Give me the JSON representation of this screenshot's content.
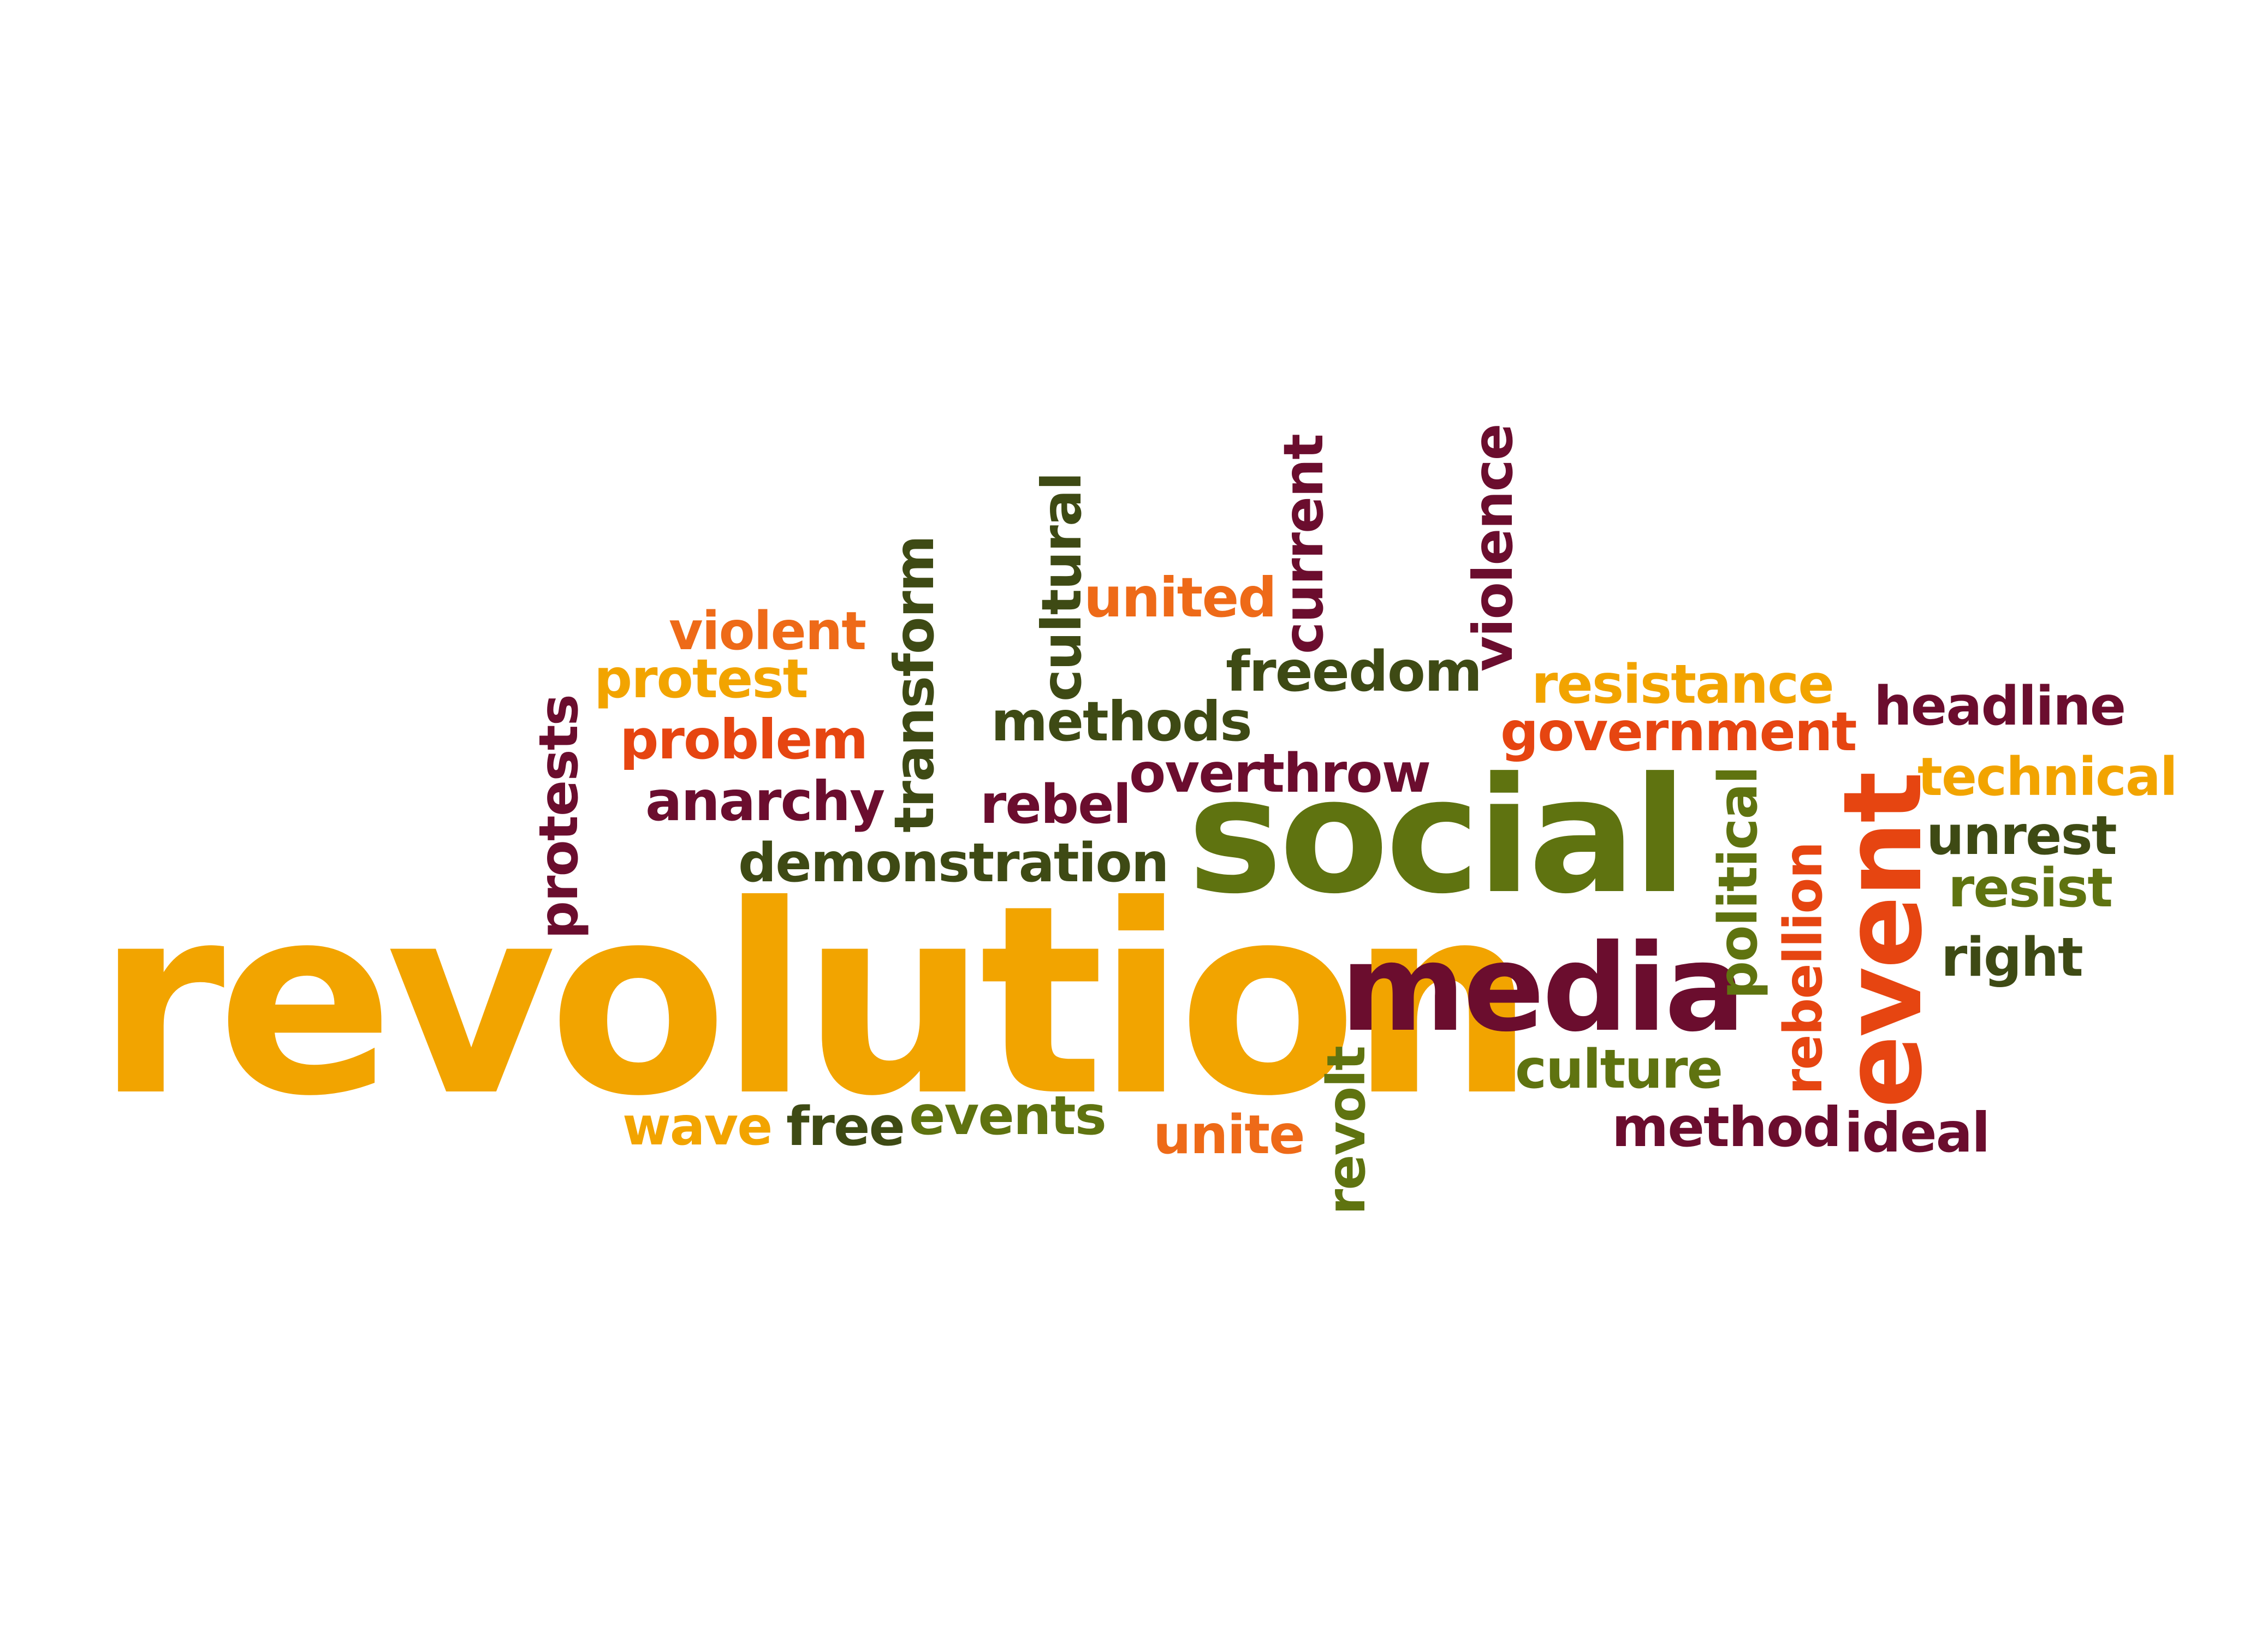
{
  "colors": {
    "gold": "#f2a400",
    "orange": "#ee6a18",
    "red": "#e64511",
    "olive": "#5f7310",
    "dark_green": "#3e4a14",
    "maroon": "#6b0d2e",
    "background": "#ffffff"
  },
  "words": {
    "revolution": "revolution",
    "social": "social",
    "media": "media",
    "event": "event",
    "violent": "violent",
    "protest": "protest",
    "problem": "problem",
    "anarchy": "anarchy",
    "protests": "protests",
    "transform": "transform",
    "cultural": "cultural",
    "united": "united",
    "current": "current",
    "violence": "violence",
    "freedom": "freedom",
    "methods": "methods",
    "overthrow": "overthrow",
    "rebel": "rebel",
    "demonstration": "demonstration",
    "resistance": "resistance",
    "government": "government",
    "headline": "headline",
    "technical": "technical",
    "unrest": "unrest",
    "resist": "resist",
    "right": "right",
    "political": "political",
    "rebellion": "rebellion",
    "culture": "culture",
    "method": "method",
    "ideal": "ideal",
    "wave": "wave",
    "free": "free",
    "events": "events",
    "unite": "unite",
    "revolt": "revolt"
  }
}
